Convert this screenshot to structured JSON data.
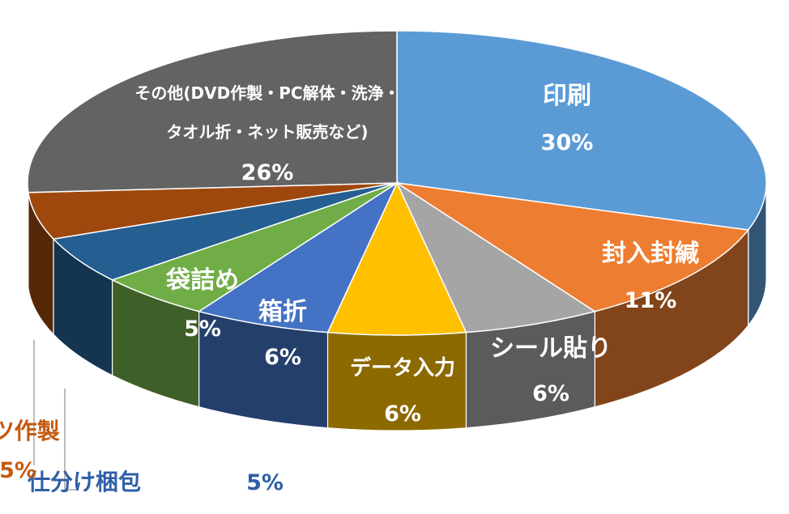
{
  "chart_data": {
    "type": "pie",
    "title": "",
    "slices": [
      {
        "lines": [
          "印刷"
        ],
        "pct_text": "30%",
        "value": 30,
        "color": "#5b9bd5",
        "text_color": "#ffffff"
      },
      {
        "lines": [
          "封入封緘"
        ],
        "pct_text": "11%",
        "value": 11,
        "color": "#ed7d31",
        "text_color": "#ffffff"
      },
      {
        "lines": [
          "シール貼り"
        ],
        "pct_text": "6%",
        "value": 6,
        "color": "#a5a5a5",
        "text_color": "#ffffff"
      },
      {
        "lines": [
          "データ入力"
        ],
        "pct_text": "6%",
        "value": 6,
        "color": "#ffc000",
        "text_color": "#ffffff"
      },
      {
        "lines": [
          "箱折"
        ],
        "pct_text": "6%",
        "value": 6,
        "color": "#4472c4",
        "text_color": "#ffffff"
      },
      {
        "lines": [
          "袋詰め"
        ],
        "pct_text": "5%",
        "value": 5,
        "color": "#70ad47",
        "text_color": "#ffffff"
      },
      {
        "lines": [
          "仕分け梱包"
        ],
        "pct_text": "5%",
        "value": 5,
        "color": "#255e91",
        "text_color": "#2e5fa8"
      },
      {
        "lines": [
          "パーツ作製"
        ],
        "pct_text": "5%",
        "value": 5,
        "color": "#9e480e",
        "text_color": "#c55a11"
      },
      {
        "lines": [
          "その他(DVD作製・PC解体・洗浄・",
          "タオル折・ネット販売など)"
        ],
        "pct_text": "26%",
        "value": 26,
        "color": "#636363",
        "text_color": "#ffffff"
      }
    ]
  }
}
